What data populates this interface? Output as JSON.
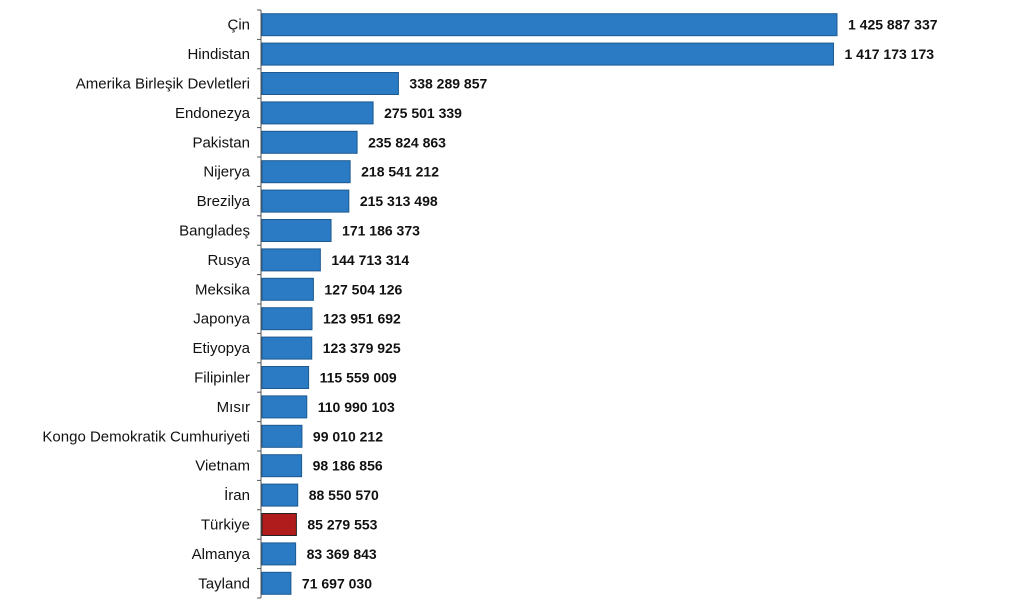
{
  "chart_data": {
    "type": "bar",
    "orientation": "horizontal",
    "categories": [
      "Çin",
      "Hindistan",
      "Amerika Birleşik Devletleri",
      "Endonezya",
      "Pakistan",
      "Nijerya",
      "Brezilya",
      "Bangladeş",
      "Rusya",
      "Meksika",
      "Japonya",
      "Etiyopya",
      "Filipinler",
      "Mısır",
      "Kongo Demokratik Cumhuriyeti",
      "Vietnam",
      "İran",
      "Türkiye",
      "Almanya",
      "Tayland"
    ],
    "values": [
      1425887337,
      1417173173,
      338289857,
      275501339,
      235824863,
      218541212,
      215313498,
      171186373,
      144713314,
      127504126,
      123951692,
      123379925,
      115559009,
      110990103,
      99010212,
      98186856,
      88550570,
      85279553,
      83369843,
      71697030
    ],
    "data_labels": [
      "1 425 887 337",
      "1 417 173 173",
      "338 289 857",
      "275 501 339",
      "235 824 863",
      "218 541 212",
      "215 313 498",
      "171 186 373",
      "144 713 314",
      "127 504 126",
      "123 951 692",
      "123 379 925",
      "115 559 009",
      "110 990 103",
      "99 010 212",
      "98 186 856",
      "88 550 570",
      "85 279 553",
      "83 369 843",
      "71 697 030"
    ],
    "highlight": "Türkiye",
    "colors": {
      "bar": "#2a7bc4",
      "highlight": "#b01c1c",
      "bar_border": "#1d5a91"
    },
    "xlim": [
      0,
      1425887337
    ],
    "grid": false,
    "legend": "none"
  }
}
